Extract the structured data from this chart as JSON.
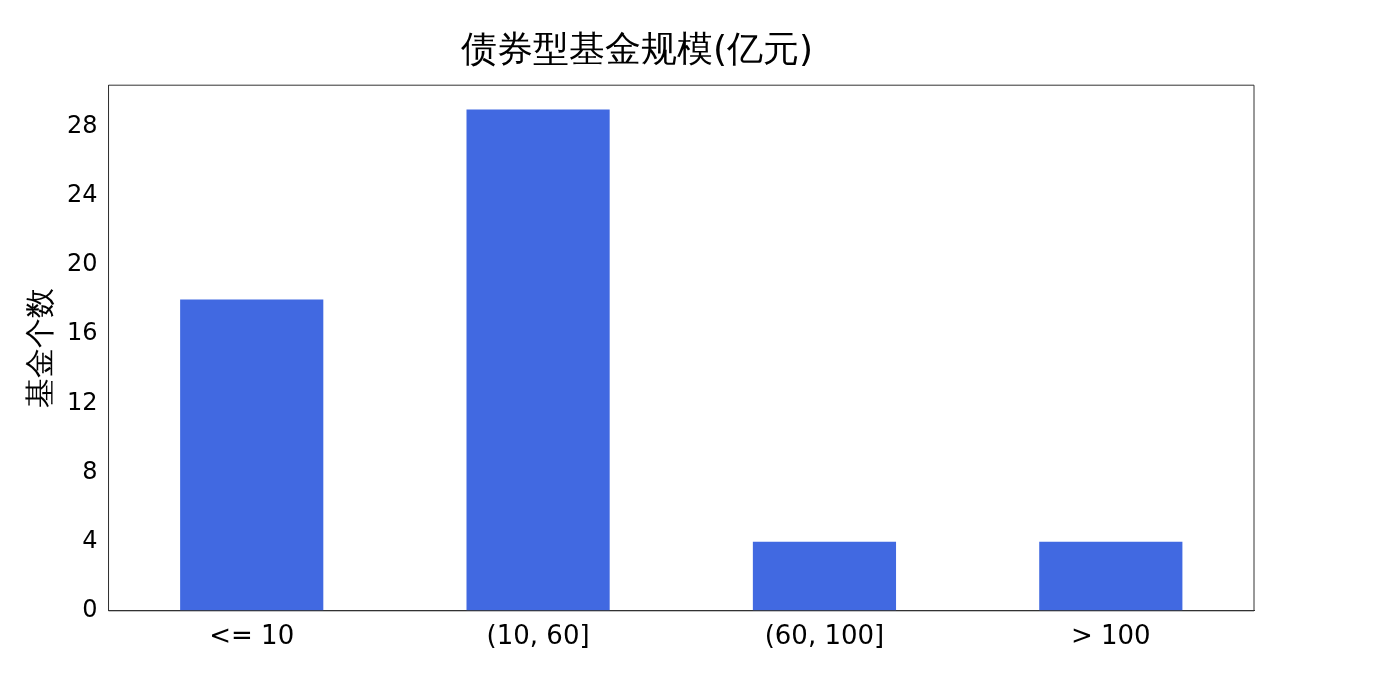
{
  "chart_data": {
    "type": "bar",
    "title": "债券型基金规模(亿元)",
    "ylabel": "基金个数",
    "categories": [
      "<= 10",
      "(10, 60]",
      "(60, 100]",
      "> 100"
    ],
    "values": [
      18,
      29,
      4,
      4
    ],
    "color": "#4169e1",
    "ylim": [
      0,
      30.4
    ],
    "yticks": [
      0,
      4,
      8,
      12,
      16,
      20,
      24,
      28
    ],
    "grid": false,
    "legend": false
  }
}
